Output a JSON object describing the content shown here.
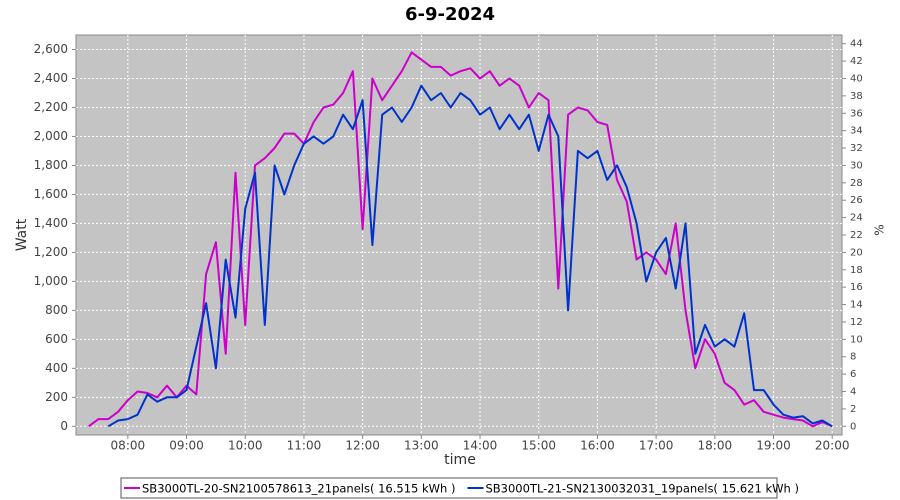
{
  "chart_data": {
    "type": "line",
    "title": "6-9-2024",
    "x_label": "time",
    "y_label": "Watt",
    "y2_label": "%",
    "x": [
      "07:20",
      "07:30",
      "07:40",
      "07:50",
      "08:00",
      "08:10",
      "08:20",
      "08:30",
      "08:40",
      "08:50",
      "09:00",
      "09:10",
      "09:20",
      "09:30",
      "09:40",
      "09:50",
      "10:00",
      "10:10",
      "10:20",
      "10:30",
      "10:40",
      "10:50",
      "11:00",
      "11:10",
      "11:20",
      "11:30",
      "11:40",
      "11:50",
      "12:00",
      "12:10",
      "12:20",
      "12:30",
      "12:40",
      "12:50",
      "13:00",
      "13:10",
      "13:20",
      "13:30",
      "13:40",
      "13:50",
      "14:00",
      "14:10",
      "14:20",
      "14:30",
      "14:40",
      "14:50",
      "15:00",
      "15:10",
      "15:20",
      "15:30",
      "15:40",
      "15:50",
      "16:00",
      "16:10",
      "16:20",
      "16:30",
      "16:40",
      "16:50",
      "17:00",
      "17:10",
      "17:20",
      "17:30",
      "17:40",
      "17:50",
      "18:00",
      "18:10",
      "18:20",
      "18:30",
      "18:40",
      "18:50",
      "19:00",
      "19:10",
      "19:20",
      "19:30",
      "19:40",
      "19:50",
      "20:00"
    ],
    "series": [
      {
        "name": "SB3000TL-20-SN2100578613_21panels( 16.515 kWh )",
        "color": "#cc00cc",
        "values": [
          0,
          50,
          50,
          100,
          180,
          240,
          230,
          200,
          280,
          200,
          280,
          220,
          1050,
          1270,
          500,
          1750,
          700,
          1800,
          1850,
          1920,
          2020,
          2020,
          1950,
          2100,
          2200,
          2220,
          2300,
          2450,
          1360,
          2400,
          2250,
          2350,
          2450,
          2580,
          2530,
          2480,
          2480,
          2420,
          2450,
          2470,
          2400,
          2450,
          2350,
          2400,
          2350,
          2200,
          2300,
          2250,
          950,
          2150,
          2200,
          2180,
          2100,
          2080,
          1700,
          1550,
          1150,
          1200,
          1150,
          1050,
          1400,
          800,
          400,
          600,
          500,
          300,
          250,
          150,
          180,
          100,
          80,
          60,
          50,
          40,
          0,
          30,
          0
        ]
      },
      {
        "name": "SB3000TL-21-SN2130032031_19panels( 15.621 kWh )",
        "color": "#0033cc",
        "values": [
          null,
          null,
          0,
          40,
          50,
          80,
          220,
          170,
          200,
          200,
          250,
          550,
          850,
          400,
          1150,
          750,
          1500,
          1750,
          700,
          1800,
          1600,
          1800,
          1950,
          2000,
          1950,
          2000,
          2150,
          2050,
          2250,
          1250,
          2150,
          2200,
          2100,
          2200,
          2350,
          2250,
          2300,
          2200,
          2300,
          2250,
          2150,
          2200,
          2050,
          2150,
          2050,
          2150,
          1900,
          2150,
          2000,
          800,
          1900,
          1850,
          1900,
          1700,
          1800,
          1650,
          1400,
          1000,
          1200,
          1300,
          950,
          1400,
          500,
          700,
          550,
          600,
          550,
          780,
          250,
          250,
          150,
          80,
          60,
          70,
          20,
          40,
          0
        ]
      }
    ],
    "xlim": [
      "07:07",
      "20:10"
    ],
    "xticks": [
      "08:00",
      "09:00",
      "10:00",
      "11:00",
      "12:00",
      "13:00",
      "14:00",
      "15:00",
      "16:00",
      "17:00",
      "18:00",
      "19:00",
      "20:00"
    ],
    "ylim": [
      -60,
      2700
    ],
    "yticks": [
      0,
      200,
      400,
      600,
      800,
      {
        "value": 1000,
        "label": "1,000"
      },
      {
        "value": 1200,
        "label": "1,200"
      },
      {
        "value": 1400,
        "label": "1,400"
      },
      {
        "value": 1600,
        "label": "1,600"
      },
      {
        "value": 1800,
        "label": "1,800"
      },
      {
        "value": 2000,
        "label": "2,000"
      },
      {
        "value": 2200,
        "label": "2,200"
      },
      {
        "value": 2400,
        "label": "2,400"
      },
      {
        "value": 2600,
        "label": "2,600"
      }
    ],
    "y2lim": [
      -1,
      45
    ],
    "y2ticks": [
      0,
      2,
      4,
      6,
      8,
      10,
      12,
      14,
      16,
      18,
      20,
      22,
      24,
      26,
      28,
      30,
      32,
      34,
      36,
      38,
      40,
      42,
      44
    ],
    "grid": true
  }
}
